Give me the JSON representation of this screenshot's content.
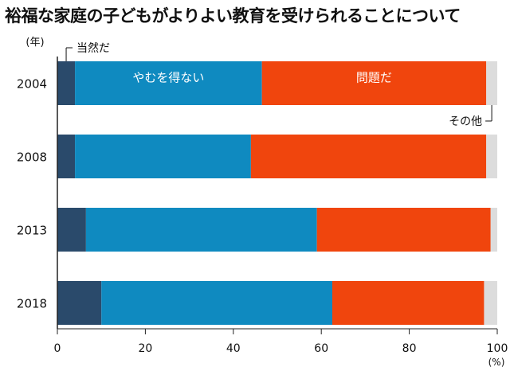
{
  "title": "裕福な家庭の子どもがよりよい教育を受けられることについて",
  "chart_data": {
    "type": "bar",
    "stacked": true,
    "orientation": "horizontal",
    "title": "裕福な家庭の子どもがよりよい教育を受けられることについて",
    "y_axis_unit": "(年)",
    "x_axis_unit": "(%)",
    "categories": [
      "2004",
      "2008",
      "2013",
      "2018"
    ],
    "xlim": [
      0,
      100
    ],
    "xticks": [
      0,
      20,
      40,
      60,
      80,
      100
    ],
    "grid": false,
    "series": [
      {
        "name": "当然だ",
        "color": "#2a4a6b",
        "values": [
          4.0,
          4.0,
          6.5,
          10.0
        ]
      },
      {
        "name": "やむを得ない",
        "color": "#0f8ac0",
        "values": [
          42.5,
          40.0,
          52.5,
          52.5
        ]
      },
      {
        "name": "問題だ",
        "color": "#f0450d",
        "values": [
          51.0,
          53.5,
          39.5,
          34.5
        ]
      },
      {
        "name": "その他",
        "color": "#dcdcdc",
        "values": [
          2.5,
          2.5,
          1.5,
          3.0
        ]
      }
    ]
  }
}
